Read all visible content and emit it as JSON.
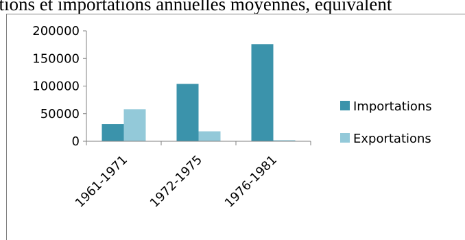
{
  "caption": "rtations et importations annuelles moyennes, équivalent",
  "colors": {
    "importations": "#3b93ab",
    "exportations": "#93c9d9",
    "axis": "#7f7f7f"
  },
  "chart_data": {
    "type": "bar",
    "title": "",
    "xlabel": "",
    "ylabel": "",
    "categories": [
      "1961-1971",
      "1972-1975",
      "1976-1981"
    ],
    "series": [
      {
        "name": "Importations",
        "values": [
          31000,
          104000,
          176000
        ]
      },
      {
        "name": "Exportations",
        "values": [
          58000,
          18000,
          2000
        ]
      }
    ],
    "ylim": [
      0,
      200000
    ],
    "yticks": [
      "0",
      "50000",
      "100000",
      "150000",
      "200000"
    ],
    "grid": false,
    "legend_position": "right"
  }
}
